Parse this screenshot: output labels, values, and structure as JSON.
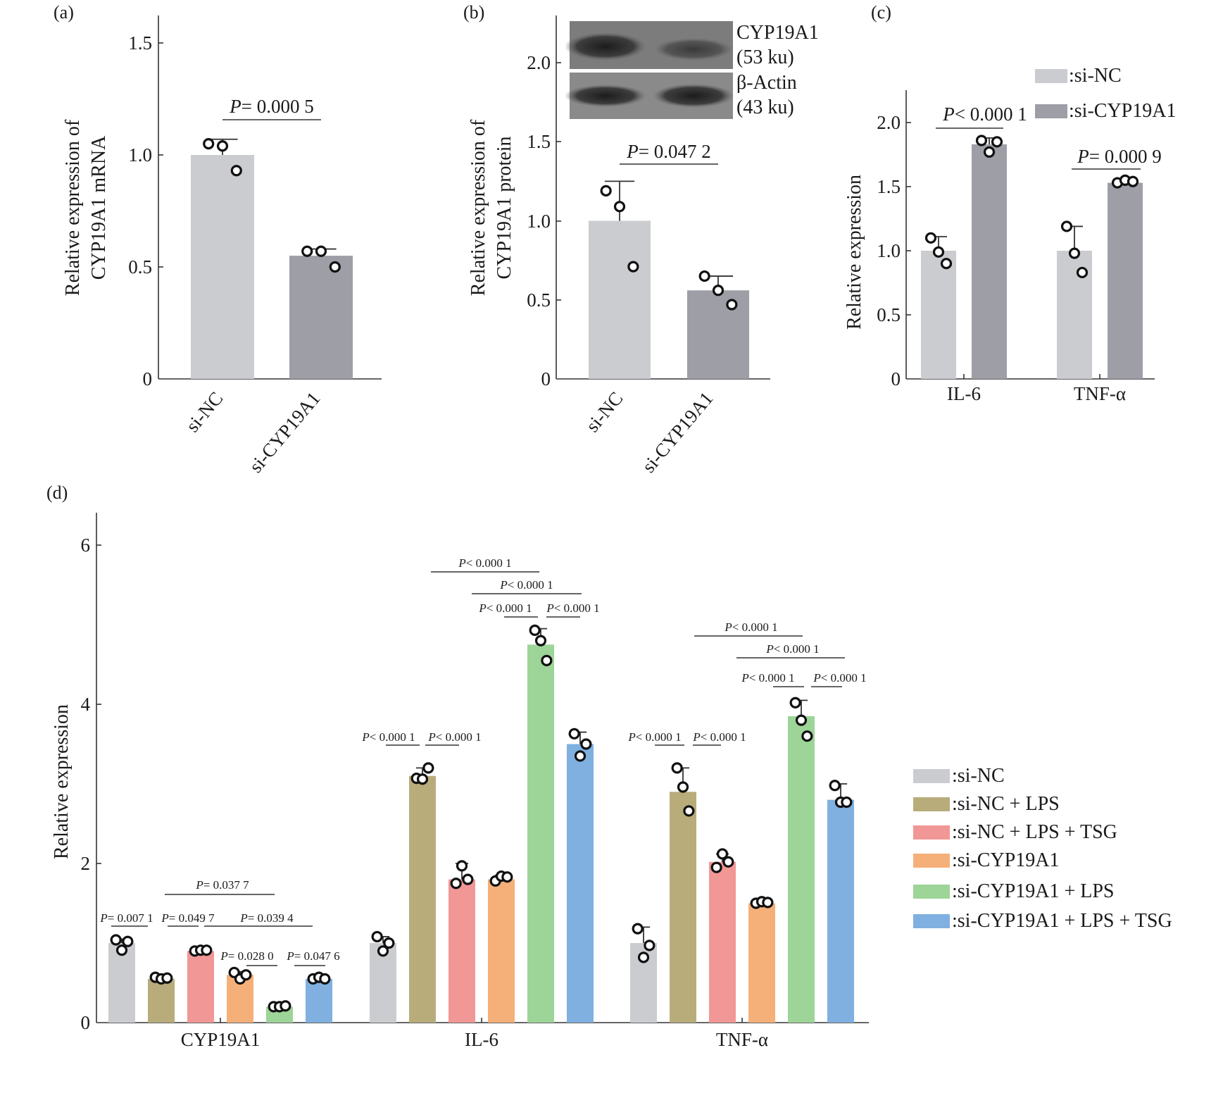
{
  "figure": {
    "panels": {
      "a": {
        "tag": "(a)",
        "ylabel_line1": "Relative expression of",
        "ylabel_line2": "CYP19A1 mRNA",
        "categories": [
          "si-NC",
          "si-CYP19A1"
        ],
        "ticks": [
          "0",
          "0.5",
          "1.0",
          "1.5"
        ],
        "pvalue": "= 0.000 5"
      },
      "b": {
        "tag": "(b)",
        "ylabel_line1": "Relative expression of",
        "ylabel_line2": "CYP19A1 protein",
        "categories": [
          "si-NC",
          "si-CYP19A1"
        ],
        "ticks": [
          "0",
          "0.5",
          "1.0",
          "1.5",
          "2.0"
        ],
        "pvalue": "= 0.047 2",
        "blot": {
          "band1_name": "CYP19A1",
          "band1_size": "(53 ku)",
          "band2_name": "β-Actin",
          "band2_size": "(43 ku)"
        }
      },
      "c": {
        "tag": "(c)",
        "ylabel": "Relative expression",
        "groups": [
          "IL-6",
          "TNF-α"
        ],
        "ticks": [
          "0",
          "0.5",
          "1.0",
          "1.5",
          "2.0"
        ],
        "pvalues": [
          "< 0.000 1",
          "= 0.000 9"
        ],
        "legend": [
          ":si-NC",
          ":si-CYP19A1"
        ]
      },
      "d": {
        "tag": "(d)",
        "ylabel": "Relative expression",
        "groups": [
          "CYP19A1",
          "IL-6",
          "TNF-α"
        ],
        "ticks": [
          "0",
          "2",
          "4",
          "6"
        ],
        "legend": [
          ":si-NC",
          ":si-NC + LPS",
          ":si-NC + LPS + TSG",
          ":si-CYP19A1",
          ":si-CYP19A1 + LPS",
          ":si-CYP19A1 + LPS + TSG"
        ],
        "pvalues_cyp": [
          "= 0.007 1",
          "= 0.049 7",
          "= 0.039 4",
          "= 0.037 7",
          "= 0.028 0",
          "= 0.047 6"
        ],
        "pvalues_il6": [
          "< 0.000 1",
          "< 0.000 1",
          "< 0.000 1",
          "< 0.000 1",
          "< 0.000 1",
          "< 0.000 1"
        ],
        "pvalues_tnf": [
          "< 0.000 1",
          "< 0.000 1",
          "< 0.000 1",
          "< 0.000 1",
          "< 0.000 1",
          "< 0.000 1"
        ]
      }
    },
    "p_symbol": "P"
  },
  "chart_data": [
    {
      "panel": "a",
      "type": "bar",
      "categories": [
        "si-NC",
        "si-CYP19A1"
      ],
      "values": [
        1.0,
        0.55
      ],
      "error": [
        0.07,
        0.03
      ],
      "points": [
        [
          1.05,
          1.04,
          0.93
        ],
        [
          0.57,
          0.57,
          0.5
        ]
      ],
      "ylabel": "Relative expression of CYP19A1 mRNA",
      "ylim": [
        0,
        1.6
      ],
      "colors": [
        "#cbcccf",
        "#9d9ea6"
      ],
      "annotations": [
        "P = 0.000 5"
      ]
    },
    {
      "panel": "b",
      "type": "bar",
      "categories": [
        "si-NC",
        "si-CYP19A1"
      ],
      "values": [
        1.0,
        0.56
      ],
      "error": [
        0.25,
        0.09
      ],
      "points": [
        [
          1.19,
          1.09,
          0.71
        ],
        [
          0.65,
          0.56,
          0.47
        ]
      ],
      "ylabel": "Relative expression of CYP19A1 protein",
      "ylim": [
        0,
        2.3
      ],
      "colors": [
        "#cbcccf",
        "#9d9ea6"
      ],
      "annotations": [
        "P = 0.047 2"
      ]
    },
    {
      "panel": "c",
      "type": "bar",
      "categories": [
        "IL-6",
        "TNF-α"
      ],
      "series": [
        {
          "name": "si-NC",
          "values": [
            1.0,
            1.0
          ],
          "error": [
            0.11,
            0.19
          ],
          "points": [
            [
              1.1,
              0.99,
              0.9
            ],
            [
              1.19,
              0.98,
              0.83
            ]
          ]
        },
        {
          "name": "si-CYP19A1",
          "values": [
            1.83,
            1.53
          ],
          "error": [
            0.05,
            0.02
          ],
          "points": [
            [
              1.86,
              1.77,
              1.85
            ],
            [
              1.53,
              1.55,
              1.54
            ]
          ]
        }
      ],
      "ylabel": "Relative expression",
      "ylim": [
        0,
        2.25
      ],
      "colors": [
        "#cbcccf",
        "#9d9ea6"
      ],
      "legend_position": "top-right",
      "annotations": [
        "P < 0.000 1",
        "P = 0.000 9"
      ]
    },
    {
      "panel": "d",
      "type": "bar",
      "categories": [
        "CYP19A1",
        "IL-6",
        "TNF-α"
      ],
      "series": [
        {
          "name": "si-NC",
          "values": [
            1.0,
            1.0,
            1.0
          ],
          "error": [
            0.05,
            0.08,
            0.2
          ],
          "points": [
            [
              1.04,
              0.91,
              1.02
            ],
            [
              1.08,
              0.9,
              1.0
            ],
            [
              1.18,
              0.82,
              0.97
            ]
          ]
        },
        {
          "name": "si-NC + LPS",
          "values": [
            0.55,
            3.1,
            2.9
          ],
          "error": [
            0.03,
            0.1,
            0.3
          ],
          "points": [
            [
              0.57,
              0.55,
              0.56
            ],
            [
              3.07,
              3.06,
              3.2
            ],
            [
              3.2,
              2.96,
              2.66
            ]
          ]
        },
        {
          "name": "si-NC + LPS + TSG",
          "values": [
            0.9,
            1.8,
            2.02
          ],
          "error": [
            0.02,
            0.2,
            0.1
          ],
          "points": [
            [
              0.9,
              0.91,
              0.91
            ],
            [
              1.75,
              1.97,
              1.8
            ],
            [
              1.95,
              2.12,
              2.02
            ]
          ]
        },
        {
          "name": "si-CYP19A1",
          "values": [
            0.6,
            1.8,
            1.5
          ],
          "error": [
            0.04,
            0.05,
            0.04
          ],
          "points": [
            [
              0.63,
              0.55,
              0.6
            ],
            [
              1.78,
              1.84,
              1.83
            ],
            [
              1.5,
              1.52,
              1.51
            ]
          ]
        },
        {
          "name": "si-CYP19A1 + LPS",
          "values": [
            0.2,
            4.75,
            3.85
          ],
          "error": [
            0.01,
            0.2,
            0.2
          ],
          "points": [
            [
              0.2,
              0.2,
              0.21
            ],
            [
              4.93,
              4.8,
              4.55
            ],
            [
              4.02,
              3.8,
              3.6
            ]
          ]
        },
        {
          "name": "si-CYP19A1 + LPS + TSG",
          "values": [
            0.55,
            3.5,
            2.8
          ],
          "error": [
            0.03,
            0.15,
            0.2
          ],
          "points": [
            [
              0.55,
              0.57,
              0.55
            ],
            [
              3.63,
              3.35,
              3.5
            ],
            [
              2.98,
              2.77,
              2.77
            ]
          ]
        }
      ],
      "ylabel": "Relative expression",
      "ylim": [
        0,
        6.4
      ],
      "colors": [
        "#cbcccf",
        "#b9ac7b",
        "#f19796",
        "#f5b07a",
        "#9dd498",
        "#7fb0e0"
      ],
      "legend_position": "right"
    }
  ]
}
